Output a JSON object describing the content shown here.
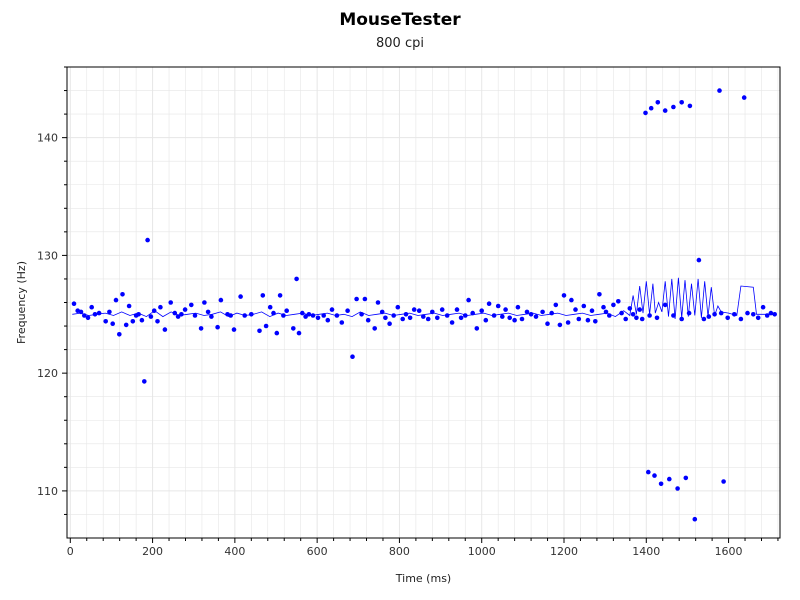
{
  "chart_data": {
    "type": "scatter",
    "title": "MouseTester",
    "subtitle": "800 cpi",
    "xlabel": "Time (ms)",
    "ylabel": "Frequency (Hz)",
    "xlim": [
      -8,
      1725
    ],
    "ylim": [
      106,
      146
    ],
    "xticks": [
      0,
      200,
      400,
      600,
      800,
      1000,
      1200,
      1400,
      1600
    ],
    "yticks": [
      110,
      120,
      130,
      140
    ],
    "grid": true,
    "colors": {
      "points": "#0000ff",
      "line": "#0000ff",
      "grid": "#e6e6e6",
      "axis": "#000000"
    },
    "series": [
      {
        "marker": "dot",
        "points": [
          [
            9,
            125.9
          ],
          [
            18,
            125.3
          ],
          [
            26,
            125.2
          ],
          [
            34,
            124.9
          ],
          [
            43,
            124.7
          ],
          [
            52,
            125.6
          ],
          [
            60,
            125.0
          ],
          [
            70,
            125.1
          ],
          [
            86,
            124.4
          ],
          [
            95,
            125.2
          ],
          [
            103,
            124.2
          ],
          [
            111,
            126.2
          ],
          [
            119,
            123.3
          ],
          [
            127,
            126.7
          ],
          [
            136,
            124.1
          ],
          [
            143,
            125.7
          ],
          [
            152,
            124.4
          ],
          [
            160,
            124.9
          ],
          [
            166,
            125.0
          ],
          [
            174,
            124.5
          ],
          [
            180,
            119.3
          ],
          [
            188,
            131.3
          ],
          [
            196,
            124.8
          ],
          [
            204,
            125.3
          ],
          [
            212,
            124.4
          ],
          [
            219,
            125.6
          ],
          [
            230,
            123.7
          ],
          [
            244,
            126.0
          ],
          [
            254,
            125.1
          ],
          [
            262,
            124.8
          ],
          [
            270,
            125.0
          ],
          [
            279,
            125.4
          ],
          [
            294,
            125.8
          ],
          [
            303,
            124.9
          ],
          [
            318,
            123.8
          ],
          [
            326,
            126.0
          ],
          [
            335,
            125.2
          ],
          [
            343,
            124.8
          ],
          [
            358,
            123.9
          ],
          [
            366,
            126.2
          ],
          [
            382,
            125.0
          ],
          [
            390,
            124.9
          ],
          [
            398,
            123.7
          ],
          [
            414,
            126.5
          ],
          [
            424,
            124.9
          ],
          [
            440,
            125.0
          ],
          [
            460,
            123.6
          ],
          [
            468,
            126.6
          ],
          [
            476,
            124.0
          ],
          [
            486,
            125.6
          ],
          [
            494,
            125.1
          ],
          [
            502,
            123.4
          ],
          [
            510,
            126.6
          ],
          [
            518,
            124.9
          ],
          [
            526,
            125.3
          ],
          [
            542,
            123.8
          ],
          [
            550,
            128.0
          ],
          [
            556,
            123.4
          ],
          [
            564,
            125.1
          ],
          [
            572,
            124.8
          ],
          [
            580,
            125.0
          ],
          [
            590,
            124.9
          ],
          [
            602,
            124.7
          ],
          [
            616,
            124.9
          ],
          [
            626,
            124.5
          ],
          [
            636,
            125.4
          ],
          [
            648,
            124.9
          ],
          [
            660,
            124.3
          ],
          [
            674,
            125.3
          ],
          [
            686,
            121.4
          ],
          [
            696,
            126.3
          ],
          [
            708,
            125.0
          ],
          [
            716,
            126.3
          ],
          [
            724,
            124.5
          ],
          [
            740,
            123.8
          ],
          [
            748,
            126.0
          ],
          [
            758,
            125.2
          ],
          [
            766,
            124.7
          ],
          [
            776,
            124.2
          ],
          [
            786,
            124.9
          ],
          [
            796,
            125.6
          ],
          [
            808,
            124.6
          ],
          [
            816,
            125.0
          ],
          [
            826,
            124.7
          ],
          [
            836,
            125.4
          ],
          [
            848,
            125.3
          ],
          [
            858,
            124.8
          ],
          [
            870,
            124.6
          ],
          [
            880,
            125.2
          ],
          [
            892,
            124.7
          ],
          [
            904,
            125.4
          ],
          [
            916,
            124.9
          ],
          [
            928,
            124.3
          ],
          [
            940,
            125.4
          ],
          [
            950,
            124.7
          ],
          [
            960,
            124.9
          ],
          [
            968,
            126.2
          ],
          [
            978,
            125.1
          ],
          [
            988,
            123.8
          ],
          [
            1000,
            125.3
          ],
          [
            1010,
            124.5
          ],
          [
            1018,
            125.9
          ],
          [
            1030,
            124.9
          ],
          [
            1040,
            125.7
          ],
          [
            1050,
            124.8
          ],
          [
            1058,
            125.4
          ],
          [
            1068,
            124.7
          ],
          [
            1080,
            124.5
          ],
          [
            1088,
            125.6
          ],
          [
            1098,
            124.6
          ],
          [
            1110,
            125.2
          ],
          [
            1120,
            125.0
          ],
          [
            1132,
            124.8
          ],
          [
            1148,
            125.2
          ],
          [
            1160,
            124.2
          ],
          [
            1170,
            125.1
          ],
          [
            1180,
            125.8
          ],
          [
            1190,
            124.1
          ],
          [
            1200,
            126.6
          ],
          [
            1210,
            124.3
          ],
          [
            1218,
            126.2
          ],
          [
            1228,
            125.4
          ],
          [
            1236,
            124.6
          ],
          [
            1248,
            125.7
          ],
          [
            1258,
            124.5
          ],
          [
            1268,
            125.3
          ],
          [
            1276,
            124.4
          ],
          [
            1286,
            126.7
          ],
          [
            1296,
            125.6
          ],
          [
            1302,
            125.2
          ],
          [
            1310,
            124.9
          ],
          [
            1320,
            125.8
          ],
          [
            1332,
            126.1
          ],
          [
            1340,
            125.1
          ],
          [
            1350,
            124.6
          ],
          [
            1360,
            125.5
          ],
          [
            1368,
            125.0
          ],
          [
            1376,
            124.7
          ],
          [
            1384,
            125.4
          ],
          [
            1398,
            142.1
          ],
          [
            1412,
            142.5
          ],
          [
            1428,
            143.0
          ],
          [
            1446,
            142.3
          ],
          [
            1466,
            142.6
          ],
          [
            1486,
            143.0
          ],
          [
            1506,
            142.7
          ],
          [
            1578,
            144.0
          ],
          [
            1638,
            143.4
          ],
          [
            1405,
            111.6
          ],
          [
            1420,
            111.3
          ],
          [
            1436,
            110.6
          ],
          [
            1456,
            111.0
          ],
          [
            1476,
            110.2
          ],
          [
            1496,
            111.1
          ],
          [
            1518,
            107.6
          ],
          [
            1588,
            110.8
          ],
          [
            1390,
            124.6
          ],
          [
            1408,
            124.9
          ],
          [
            1426,
            124.7
          ],
          [
            1446,
            125.8
          ],
          [
            1466,
            124.9
          ],
          [
            1486,
            124.6
          ],
          [
            1504,
            125.1
          ],
          [
            1528,
            129.6
          ],
          [
            1540,
            124.6
          ],
          [
            1552,
            124.8
          ],
          [
            1566,
            125.0
          ],
          [
            1582,
            125.1
          ],
          [
            1598,
            124.7
          ],
          [
            1614,
            125.0
          ],
          [
            1630,
            124.6
          ],
          [
            1646,
            125.1
          ],
          [
            1660,
            125.0
          ],
          [
            1672,
            124.7
          ],
          [
            1684,
            125.6
          ],
          [
            1694,
            124.9
          ],
          [
            1703,
            125.1
          ],
          [
            1712,
            125.0
          ]
        ]
      },
      {
        "marker": "line",
        "points": [
          [
            5,
            125.0
          ],
          [
            25,
            125.1
          ],
          [
            45,
            124.9
          ],
          [
            65,
            125.0
          ],
          [
            85,
            125.1
          ],
          [
            105,
            124.9
          ],
          [
            125,
            125.2
          ],
          [
            145,
            124.9
          ],
          [
            165,
            125.1
          ],
          [
            185,
            124.8
          ],
          [
            205,
            125.3
          ],
          [
            225,
            124.8
          ],
          [
            245,
            125.2
          ],
          [
            265,
            124.9
          ],
          [
            285,
            125.0
          ],
          [
            305,
            125.1
          ],
          [
            325,
            124.9
          ],
          [
            345,
            125.0
          ],
          [
            365,
            125.2
          ],
          [
            385,
            124.8
          ],
          [
            405,
            125.1
          ],
          [
            425,
            124.9
          ],
          [
            445,
            125.0
          ],
          [
            465,
            125.2
          ],
          [
            485,
            124.8
          ],
          [
            505,
            125.1
          ],
          [
            525,
            124.9
          ],
          [
            545,
            125.0
          ],
          [
            565,
            125.1
          ],
          [
            585,
            124.9
          ],
          [
            605,
            125.0
          ],
          [
            625,
            125.1
          ],
          [
            645,
            124.9
          ],
          [
            665,
            125.0
          ],
          [
            685,
            124.8
          ],
          [
            705,
            125.2
          ],
          [
            725,
            124.9
          ],
          [
            745,
            125.0
          ],
          [
            765,
            125.1
          ],
          [
            785,
            124.9
          ],
          [
            805,
            125.0
          ],
          [
            825,
            125.1
          ],
          [
            845,
            124.9
          ],
          [
            865,
            125.0
          ],
          [
            885,
            125.1
          ],
          [
            905,
            124.9
          ],
          [
            925,
            125.0
          ],
          [
            945,
            125.1
          ],
          [
            965,
            124.9
          ],
          [
            985,
            125.0
          ],
          [
            1005,
            125.1
          ],
          [
            1025,
            124.9
          ],
          [
            1045,
            125.0
          ],
          [
            1065,
            125.1
          ],
          [
            1085,
            124.9
          ],
          [
            1105,
            125.0
          ],
          [
            1125,
            125.1
          ],
          [
            1145,
            124.9
          ],
          [
            1165,
            125.0
          ],
          [
            1185,
            125.1
          ],
          [
            1205,
            124.9
          ],
          [
            1225,
            125.0
          ],
          [
            1245,
            125.1
          ],
          [
            1265,
            124.9
          ],
          [
            1285,
            125.0
          ],
          [
            1305,
            125.1
          ],
          [
            1325,
            124.8
          ],
          [
            1345,
            125.3
          ],
          [
            1360,
            124.9
          ],
          [
            1368,
            126.6
          ],
          [
            1376,
            125.0
          ],
          [
            1384,
            127.4
          ],
          [
            1392,
            125.1
          ],
          [
            1400,
            127.8
          ],
          [
            1408,
            125.0
          ],
          [
            1416,
            127.6
          ],
          [
            1422,
            125.1
          ],
          [
            1430,
            126.0
          ],
          [
            1438,
            125.2
          ],
          [
            1446,
            127.8
          ],
          [
            1454,
            124.8
          ],
          [
            1462,
            128.0
          ],
          [
            1470,
            124.6
          ],
          [
            1478,
            128.1
          ],
          [
            1486,
            124.7
          ],
          [
            1494,
            127.9
          ],
          [
            1502,
            124.8
          ],
          [
            1510,
            127.6
          ],
          [
            1518,
            124.9
          ],
          [
            1526,
            128.0
          ],
          [
            1534,
            124.7
          ],
          [
            1542,
            127.8
          ],
          [
            1550,
            124.8
          ],
          [
            1558,
            127.3
          ],
          [
            1566,
            124.9
          ],
          [
            1574,
            125.7
          ],
          [
            1582,
            125.2
          ],
          [
            1600,
            125.1
          ],
          [
            1620,
            124.9
          ],
          [
            1630,
            127.4
          ],
          [
            1660,
            127.3
          ],
          [
            1668,
            125.0
          ],
          [
            1680,
            125.0
          ],
          [
            1700,
            125.0
          ],
          [
            1715,
            125.0
          ]
        ]
      }
    ]
  }
}
